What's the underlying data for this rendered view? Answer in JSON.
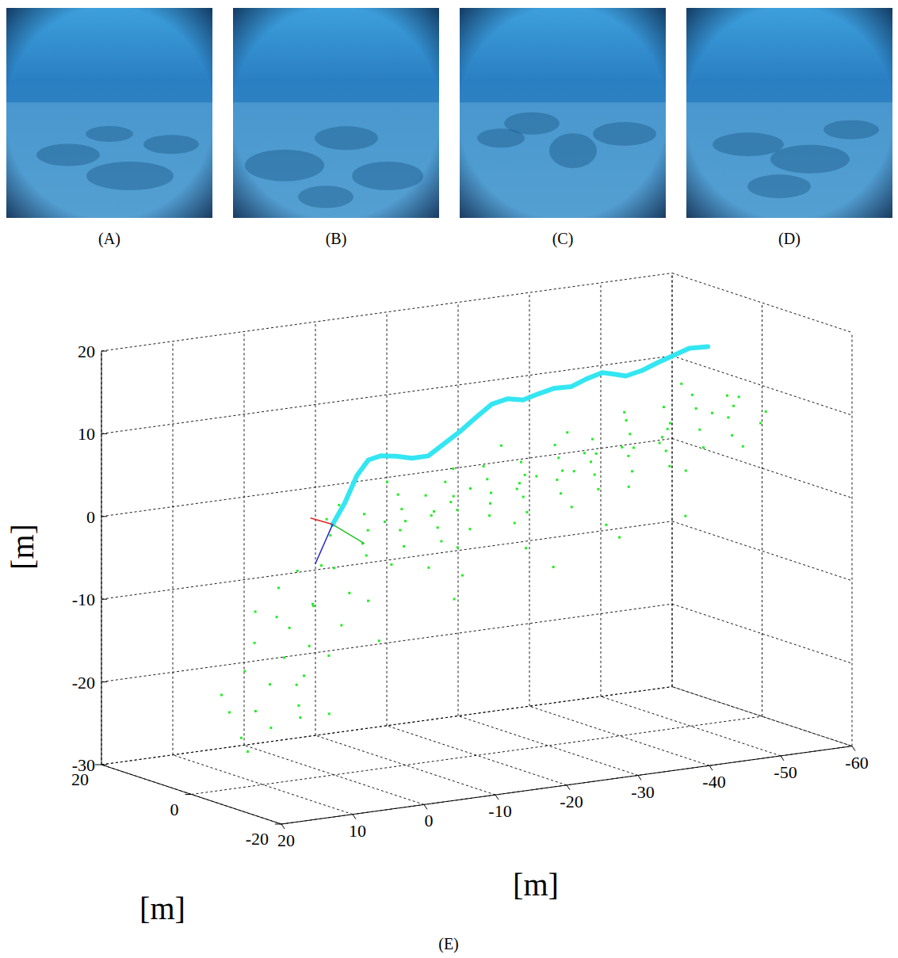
{
  "panels": [
    {
      "label": "(A)"
    },
    {
      "label": "(B)"
    },
    {
      "label": "(C)"
    },
    {
      "label": "(D)"
    }
  ],
  "chart_data": {
    "type": "scatter3d",
    "label": "(E)",
    "xlabel": "[m]",
    "ylabel": "[m]",
    "zlabel": "[m]",
    "xlim": [
      -60,
      20
    ],
    "ylim": [
      -20,
      20
    ],
    "zlim": [
      -30,
      20
    ],
    "xticks": [
      20,
      10,
      0,
      -10,
      -20,
      -30,
      -40,
      -50,
      -60
    ],
    "yticks": [
      -20,
      0,
      20
    ],
    "zticks": [
      -30,
      -20,
      -10,
      0,
      10,
      20
    ],
    "grid": true,
    "series": [
      {
        "type": "line",
        "color": "#33e6f2",
        "x": [
          0.2,
          -1.5,
          -3.2,
          -4.8,
          -6.5,
          -8.7,
          -10.9,
          -13.2,
          -15.4,
          -17.6,
          -19.8,
          -22.1,
          -24.3,
          -26.5,
          -28.7,
          -30.9,
          -33.2,
          -35.4,
          -37.6,
          -39.3,
          -40.9,
          -43.2,
          -45.4,
          -47.6,
          -49.8,
          -52.4
        ],
        "y": [
          0,
          0,
          0,
          0,
          0,
          0,
          0,
          0,
          0,
          0,
          0,
          0,
          0,
          0,
          0,
          0,
          0,
          0,
          0,
          0,
          0,
          0,
          0,
          0,
          0,
          0
        ],
        "z": [
          0.3,
          2.7,
          5.8,
          7.5,
          7.8,
          7.5,
          7.0,
          7.0,
          8.2,
          9.4,
          10.8,
          12.2,
          12.6,
          12.2,
          12.7,
          13.1,
          13.0,
          13.7,
          14.2,
          13.8,
          13.4,
          13.8,
          14.5,
          15.1,
          15.7,
          15.6
        ]
      },
      {
        "type": "scatter",
        "color": "#22ee22",
        "marker": "point",
        "x": [
          -2,
          -2,
          -4,
          -4,
          -6,
          -6,
          -8,
          -8,
          -10,
          -10,
          -12,
          -12,
          -14,
          -14,
          -14,
          -16,
          -16,
          -18,
          -18,
          -20,
          -20,
          -22,
          -22,
          -24,
          -24,
          -26,
          -26,
          -28,
          -28,
          -30,
          -30,
          -32,
          -32,
          -34,
          -34,
          -36,
          -36,
          -38,
          -38,
          -40,
          -40,
          -42,
          -42,
          -44,
          -44,
          -46,
          -46,
          -48,
          -48,
          -50,
          -50,
          -52,
          -52,
          -54,
          -54,
          -56,
          -56,
          -58,
          -58,
          -3,
          -7,
          -11,
          -15,
          -19,
          -23,
          -27,
          -31,
          -35,
          -39,
          -43,
          -47,
          -51,
          -55,
          -9,
          -13,
          -17,
          -21,
          -25,
          -29,
          -33,
          -37,
          -41,
          -45,
          -49,
          -53,
          -57,
          0,
          1,
          2,
          3,
          4,
          4,
          5,
          6,
          6,
          7,
          8,
          8,
          9,
          10,
          10,
          11,
          12,
          12,
          13,
          14,
          2,
          4,
          6,
          3,
          1,
          -1,
          -2,
          0,
          9,
          7,
          -12,
          -18,
          -25,
          -32,
          -40,
          -48,
          -20,
          -35
        ],
        "y": [
          -4,
          4,
          0,
          8,
          -6,
          2,
          -2,
          6,
          -8,
          0,
          4,
          -4,
          -8,
          0,
          8,
          -2,
          5,
          -6,
          2,
          -3,
          7,
          0,
          -8,
          4,
          -4,
          0,
          8,
          -6,
          2,
          -2,
          6,
          -8,
          0,
          4,
          -4,
          0,
          8,
          -6,
          2,
          -2,
          6,
          -8,
          0,
          4,
          -4,
          0,
          8,
          -6,
          2,
          -2,
          6,
          -6,
          2,
          -2,
          6,
          0,
          -6,
          2,
          -4,
          -8,
          10,
          -10,
          12,
          -10,
          10,
          -10,
          12,
          -10,
          10,
          -10,
          10,
          -10,
          10,
          3,
          -1,
          1,
          3,
          -1,
          1,
          -1,
          3,
          1,
          -1,
          3,
          0,
          3,
          0,
          -5,
          5,
          0,
          -8,
          6,
          2,
          -4,
          8,
          0,
          -6,
          5,
          0,
          -8,
          4,
          0,
          -5,
          6,
          0,
          -3,
          -2,
          2,
          -2,
          8,
          3,
          -6,
          6,
          -10,
          9,
          -10,
          -2,
          0,
          -3,
          2,
          0,
          -2,
          5,
          -5
        ],
        "z": [
          -3,
          -2,
          -2.5,
          -1,
          -2,
          -1.5,
          -1,
          -0.5,
          -1.5,
          -0.5,
          0,
          -0.8,
          -0.5,
          0.2,
          0.8,
          0.5,
          1,
          0.3,
          1.2,
          1,
          1.8,
          1.5,
          0.6,
          2.2,
          1.5,
          2.2,
          2.8,
          1.8,
          2.6,
          2.5,
          3.2,
          2.2,
          3,
          3.6,
          3,
          3.6,
          4.2,
          3.3,
          4,
          4.2,
          4.8,
          3.8,
          4.6,
          5.3,
          4.7,
          5.4,
          6,
          5,
          5.8,
          6.2,
          7.5,
          6,
          7.8,
          7.2,
          8.5,
          8,
          7,
          8.5,
          7.8,
          -3.5,
          0,
          -2,
          1.5,
          0,
          2.5,
          1,
          4,
          2.5,
          5,
          3.5,
          6.5,
          5.5,
          9,
          -1,
          0,
          0.8,
          1.6,
          1.8,
          2.5,
          3,
          4,
          4.6,
          5,
          6.2,
          7.5,
          8.6,
          -5,
          -7,
          -6,
          -9,
          -10,
          -8,
          -12,
          -13,
          -11,
          -15,
          -16,
          -14,
          -18,
          -19,
          -17,
          -21,
          -22,
          -20,
          -24,
          -25,
          -15,
          -19,
          -22,
          -12,
          -10,
          -8,
          -6,
          -12,
          -23,
          -20,
          -6,
          -8,
          -5,
          -9,
          -6,
          -4,
          -12,
          -3
        ]
      }
    ]
  }
}
